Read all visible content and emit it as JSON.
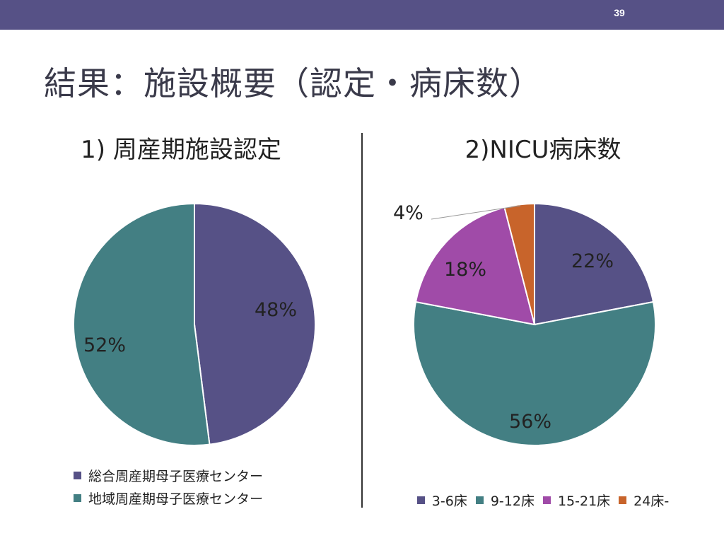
{
  "slide": {
    "page_number": "39",
    "title": "結果：施設概要（認定・病床数）"
  },
  "chart_data": [
    {
      "type": "pie",
      "title": "1) 周産期施設認定",
      "categories": [
        "総合周産期母子医療センター",
        "地域周産期母子医療センター"
      ],
      "values": [
        48,
        52
      ],
      "labels": [
        "48%",
        "52%"
      ],
      "colors": [
        "#565186",
        "#437F83"
      ],
      "legend_position": "bottom"
    },
    {
      "type": "pie",
      "title": "2)NICU病床数",
      "categories": [
        "3-6床",
        "9-12床",
        "15-21床",
        "24床-"
      ],
      "values": [
        22,
        56,
        18,
        4
      ],
      "labels": [
        "22%",
        "56%",
        "18%",
        "4%"
      ],
      "colors": [
        "#565186",
        "#437F83",
        "#A04BA8",
        "#C8642B"
      ],
      "legend_position": "bottom"
    }
  ]
}
